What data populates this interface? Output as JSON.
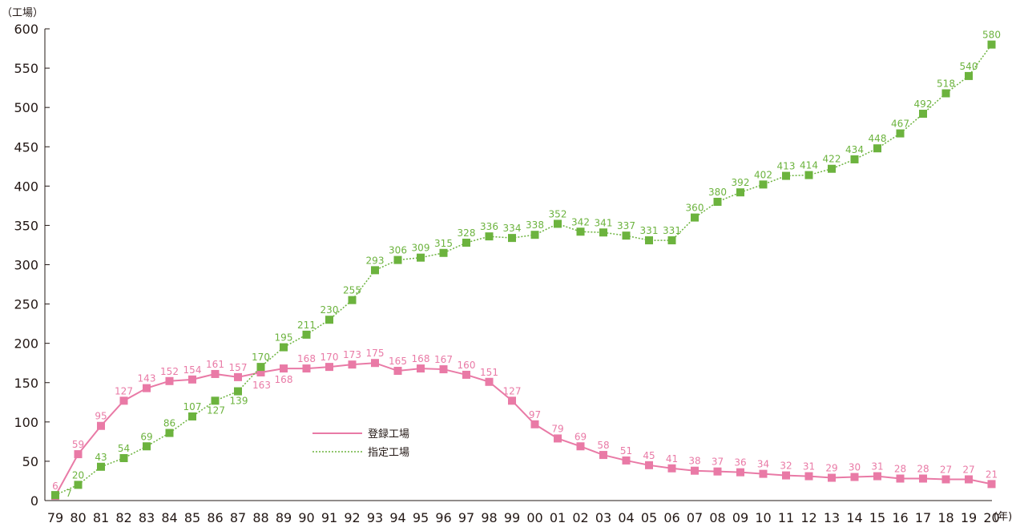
{
  "chart_data": {
    "type": "line",
    "y_unit": "（工場）",
    "x_unit": "(年)",
    "ylim": [
      0,
      600
    ],
    "y_ticks": [
      "0",
      "50",
      "100",
      "150",
      "200",
      "250",
      "300",
      "350",
      "400",
      "450",
      "500",
      "550",
      "600"
    ],
    "categories": [
      "79",
      "80",
      "81",
      "82",
      "83",
      "84",
      "85",
      "86",
      "87",
      "88",
      "89",
      "90",
      "91",
      "92",
      "93",
      "94",
      "95",
      "96",
      "97",
      "98",
      "99",
      "00",
      "01",
      "02",
      "03",
      "04",
      "05",
      "06",
      "07",
      "08",
      "09",
      "10",
      "11",
      "12",
      "13",
      "14",
      "15",
      "16",
      "17",
      "18",
      "19",
      "20"
    ],
    "series": [
      {
        "name": "登録工場",
        "color": "#e97aa6",
        "line_style": "solid",
        "values": [
          6,
          59,
          95,
          127,
          143,
          152,
          154,
          161,
          157,
          163,
          168,
          168,
          170,
          173,
          175,
          165,
          168,
          167,
          160,
          151,
          127,
          97,
          79,
          69,
          58,
          51,
          45,
          41,
          38,
          37,
          36,
          34,
          32,
          31,
          29,
          30,
          31,
          28,
          28,
          27,
          27,
          21
        ]
      },
      {
        "name": "指定工場",
        "color": "#6cb33e",
        "line_style": "dotted",
        "values": [
          7,
          20,
          43,
          54,
          69,
          86,
          107,
          127,
          139,
          170,
          195,
          211,
          230,
          255,
          293,
          306,
          309,
          315,
          328,
          336,
          334,
          338,
          352,
          342,
          341,
          337,
          331,
          331,
          360,
          380,
          392,
          402,
          413,
          414,
          422,
          434,
          448,
          467,
          492,
          518,
          540,
          580
        ]
      }
    ],
    "grid": false,
    "legend_position": "center-bottom"
  }
}
